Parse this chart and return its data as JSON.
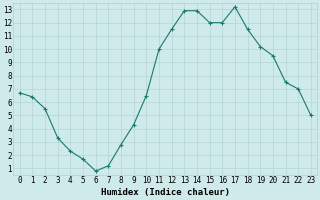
{
  "x": [
    0,
    1,
    2,
    3,
    4,
    5,
    6,
    7,
    8,
    9,
    10,
    11,
    12,
    13,
    14,
    15,
    16,
    17,
    18,
    19,
    20,
    21,
    22,
    23
  ],
  "y": [
    6.7,
    6.4,
    5.5,
    3.3,
    2.3,
    1.7,
    0.8,
    1.2,
    2.8,
    4.3,
    6.5,
    10.0,
    11.5,
    12.9,
    12.9,
    12.0,
    12.0,
    13.2,
    11.5,
    10.2,
    9.5,
    7.5,
    7.0,
    5.0
  ],
  "line_color": "#1a7a6a",
  "marker": "+",
  "marker_size": 3.5,
  "marker_linewidth": 0.8,
  "line_width": 0.8,
  "bg_color": "#ceeaea",
  "grid_color": "#b0d0d0",
  "xlabel": "Humidex (Indice chaleur)",
  "ylim_min": 0.5,
  "ylim_max": 13.5,
  "xlim_min": -0.5,
  "xlim_max": 23.5,
  "yticks": [
    1,
    2,
    3,
    4,
    5,
    6,
    7,
    8,
    9,
    10,
    11,
    12,
    13
  ],
  "xticks": [
    0,
    1,
    2,
    3,
    4,
    5,
    6,
    7,
    8,
    9,
    10,
    11,
    12,
    13,
    14,
    15,
    16,
    17,
    18,
    19,
    20,
    21,
    22,
    23
  ],
  "tick_fontsize": 5.5,
  "xlabel_fontsize": 6.5
}
